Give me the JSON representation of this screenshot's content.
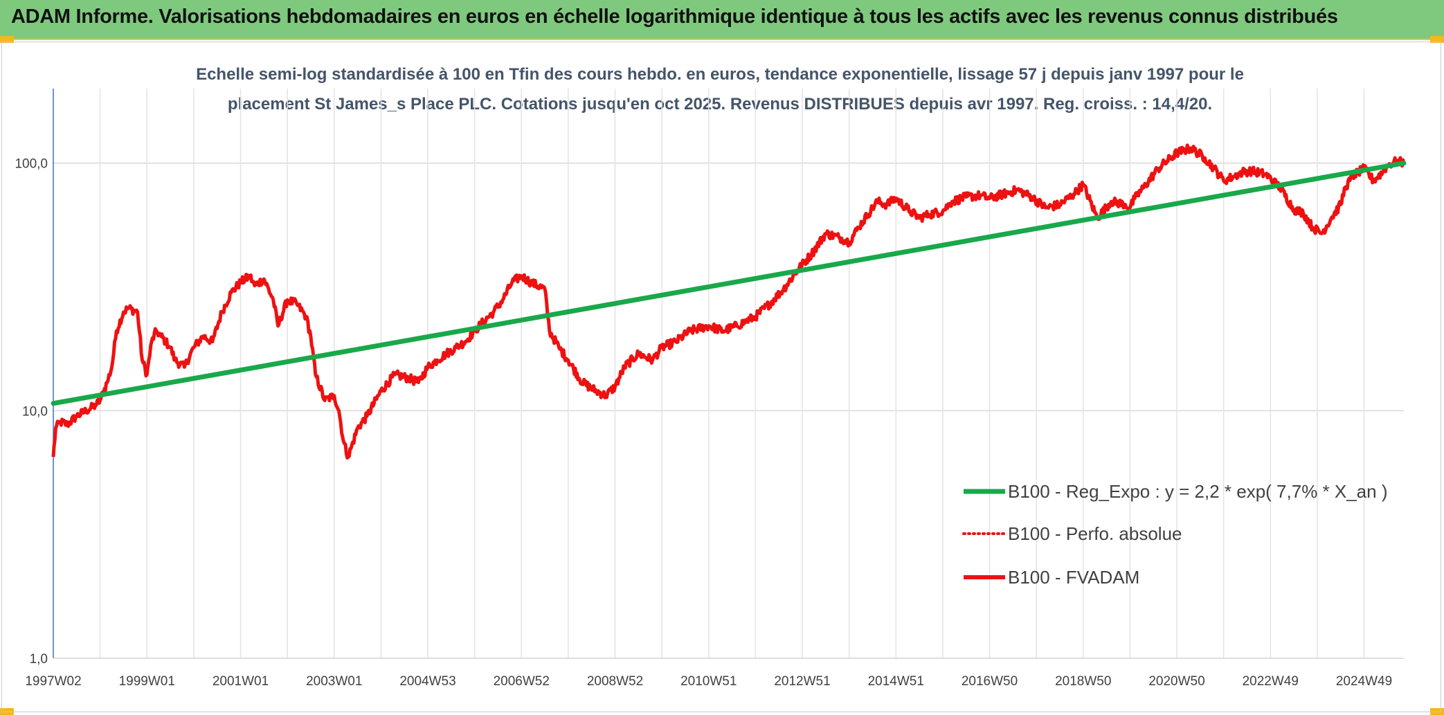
{
  "header": {
    "title": "ADAM Informe. Valorisations hebdomadaires en euros en échelle logarithmique identique à tous les actifs avec les revenus connus distribués"
  },
  "colors": {
    "header_bg": "#7ec97e",
    "corner": "#f2b820",
    "regression": "#19a84a",
    "perfo": "#ee1111",
    "fvadam": "#ee1111",
    "axis": "#4472c4",
    "grid": "#d9d9d9"
  },
  "chart_data": {
    "type": "line",
    "subtitle_lines": [
      "Echelle semi-log standardisée à 100 en Tfin des cours hebdo. en euros, tendance exponentielle, lissage 57 j depuis janv 1997 pour le",
      "placement St James_s Place PLC. Cotations jusqu'en oct 2025. Revenus DISTRIBUES depuis avr 1997. Reg. croiss. : 14,4/20."
    ],
    "y_scale": "log",
    "ylim": [
      1,
      200
    ],
    "y_ticks": [
      {
        "value": 1,
        "label": "1,0"
      },
      {
        "value": 10,
        "label": "10,0"
      },
      {
        "value": 100,
        "label": "100,0"
      }
    ],
    "xlim": [
      1997.0,
      2025.85
    ],
    "x_ticks": [
      {
        "value": 1997.0,
        "label": "1997W02"
      },
      {
        "value": 1999.0,
        "label": "1999W01"
      },
      {
        "value": 2001.0,
        "label": "2001W01"
      },
      {
        "value": 2003.0,
        "label": "2003W01"
      },
      {
        "value": 2005.0,
        "label": "2004W53"
      },
      {
        "value": 2007.0,
        "label": "2006W52"
      },
      {
        "value": 2009.0,
        "label": "2008W52"
      },
      {
        "value": 2011.0,
        "label": "2010W51"
      },
      {
        "value": 2013.0,
        "label": "2012W51"
      },
      {
        "value": 2015.0,
        "label": "2014W51"
      },
      {
        "value": 2017.0,
        "label": "2016W50"
      },
      {
        "value": 2019.0,
        "label": "2018W50"
      },
      {
        "value": 2021.0,
        "label": "2020W50"
      },
      {
        "value": 2023.0,
        "label": "2022W49"
      },
      {
        "value": 2025.0,
        "label": "2024W49"
      }
    ],
    "legend_position": "bottom-right",
    "series": [
      {
        "name": "B100 - Reg_Expo : y = 2,2 * exp( 7,7% *  X_an )",
        "style": "solid-green",
        "x": [
          1997.0,
          2025.85
        ],
        "y": [
          10.7,
          100.0
        ]
      },
      {
        "name": "B100 - Perfo. absolue",
        "style": "dotted-red",
        "x": [],
        "y": []
      },
      {
        "name": "B100 - FVADAM",
        "style": "solid-red",
        "x": [
          1997.0,
          1997.05,
          1997.15,
          1997.3,
          1997.5,
          1997.7,
          1997.9,
          1998.0,
          1998.15,
          1998.25,
          1998.35,
          1998.5,
          1998.6,
          1998.8,
          1998.9,
          1999.0,
          1999.1,
          1999.2,
          1999.3,
          1999.4,
          1999.5,
          1999.6,
          1999.8,
          2000.0,
          2000.2,
          2000.4,
          2000.6,
          2000.8,
          2001.0,
          2001.2,
          2001.3,
          2001.5,
          2001.7,
          2001.8,
          2002.0,
          2002.2,
          2002.4,
          2002.5,
          2002.6,
          2002.8,
          2003.0,
          2003.1,
          2003.2,
          2003.3,
          2003.5,
          2003.7,
          2004.0,
          2004.3,
          2004.6,
          2004.8,
          2005.0,
          2005.2,
          2005.4,
          2005.6,
          2005.8,
          2006.0,
          2006.2,
          2006.4,
          2006.6,
          2006.8,
          2007.0,
          2007.2,
          2007.5,
          2007.6,
          2007.8,
          2008.0,
          2008.3,
          2008.6,
          2008.8,
          2009.0,
          2009.2,
          2009.5,
          2009.8,
          2010.0,
          2010.3,
          2010.6,
          2011.0,
          2011.3,
          2011.6,
          2011.8,
          2012.0,
          2012.3,
          2012.6,
          2012.9,
          2013.2,
          2013.5,
          2013.8,
          2014.0,
          2014.2,
          2014.4,
          2014.6,
          2014.8,
          2015.0,
          2015.3,
          2015.5,
          2015.7,
          2016.0,
          2016.2,
          2016.5,
          2016.8,
          2017.0,
          2017.3,
          2017.6,
          2017.9,
          2018.2,
          2018.5,
          2018.8,
          2019.0,
          2019.3,
          2019.6,
          2019.9,
          2020.0,
          2020.1,
          2020.3,
          2020.6,
          2021.0,
          2021.3,
          2021.6,
          2021.8,
          2022.0,
          2022.2,
          2022.4,
          2022.6,
          2022.9,
          2023.2,
          2023.5,
          2023.7,
          2023.9,
          2024.1,
          2024.3,
          2024.5,
          2024.6,
          2024.8,
          2025.0,
          2025.2,
          2025.4,
          2025.5,
          2025.7,
          2025.85
        ],
        "y": [
          6.5,
          8.5,
          9.0,
          8.8,
          9.5,
          10.0,
          10.5,
          11.0,
          13.0,
          15.0,
          21.0,
          25.0,
          26.0,
          25.0,
          16.0,
          14.0,
          19.0,
          21.0,
          20.0,
          19.0,
          18.0,
          16.0,
          15.0,
          18.0,
          20.0,
          19.0,
          25.0,
          30.0,
          33.0,
          35.0,
          32.0,
          34.0,
          28.0,
          22.0,
          28.0,
          27.0,
          24.0,
          20.0,
          14.0,
          11.0,
          11.5,
          10.0,
          7.5,
          6.5,
          8.5,
          9.5,
          12.0,
          14.0,
          13.5,
          13.0,
          15.0,
          16.0,
          17.0,
          18.0,
          19.0,
          21.0,
          23.0,
          25.0,
          28.0,
          33.0,
          35.0,
          33.0,
          31.0,
          21.0,
          18.0,
          16.0,
          13.0,
          12.0,
          11.5,
          12.5,
          15.0,
          17.0,
          16.0,
          18.0,
          19.0,
          21.0,
          22.0,
          21.0,
          22.0,
          23.0,
          24.0,
          27.0,
          31.0,
          37.0,
          43.0,
          52.0,
          50.0,
          48.0,
          55.0,
          62.0,
          70.0,
          68.0,
          72.0,
          64.0,
          60.0,
          62.0,
          64.0,
          70.0,
          73.0,
          74.0,
          72.0,
          75.0,
          78.0,
          73.0,
          66.0,
          68.0,
          75.0,
          82.0,
          60.0,
          70.0,
          68.0,
          66.0,
          72.0,
          80.0,
          95.0,
          110.0,
          115.0,
          105.0,
          95.0,
          85.0,
          88.0,
          92.0,
          93.0,
          90.0,
          80.0,
          65.0,
          63.0,
          55.0,
          52.0,
          60.0,
          68.0,
          80.0,
          90.0,
          95.0,
          85.0,
          92.0,
          98.0,
          102.0,
          100.0
        ]
      }
    ]
  }
}
